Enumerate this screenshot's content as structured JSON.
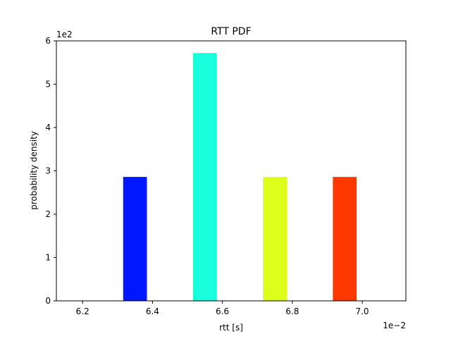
{
  "chart_data": {
    "type": "bar",
    "title": "RTT PDF",
    "xlabel": "rtt [s]",
    "ylabel": "probability density",
    "x_offset_label": "1e−2",
    "y_offset_label": "1e2",
    "xlim": [
      6.125,
      7.125
    ],
    "ylim": [
      0,
      6
    ],
    "x_ticks": [
      6.2,
      6.4,
      6.6,
      6.8,
      7.0
    ],
    "x_tick_labels": [
      "6.2",
      "6.4",
      "6.6",
      "6.8",
      "7.0"
    ],
    "y_ticks": [
      0,
      1,
      2,
      3,
      4,
      5,
      6
    ],
    "y_tick_labels": [
      "0",
      "1",
      "2",
      "3",
      "4",
      "5",
      "6"
    ],
    "bar_width": 0.068,
    "grid": false,
    "bars": [
      {
        "x": 6.2,
        "value": 0,
        "color": "#000080"
      },
      {
        "x": 6.35,
        "value": 2.86,
        "color": "#0018ff"
      },
      {
        "x": 6.55,
        "value": 5.72,
        "color": "#19ffde"
      },
      {
        "x": 6.75,
        "value": 2.86,
        "color": "#dcff1c"
      },
      {
        "x": 6.95,
        "value": 2.86,
        "color": "#ff3800"
      }
    ]
  }
}
